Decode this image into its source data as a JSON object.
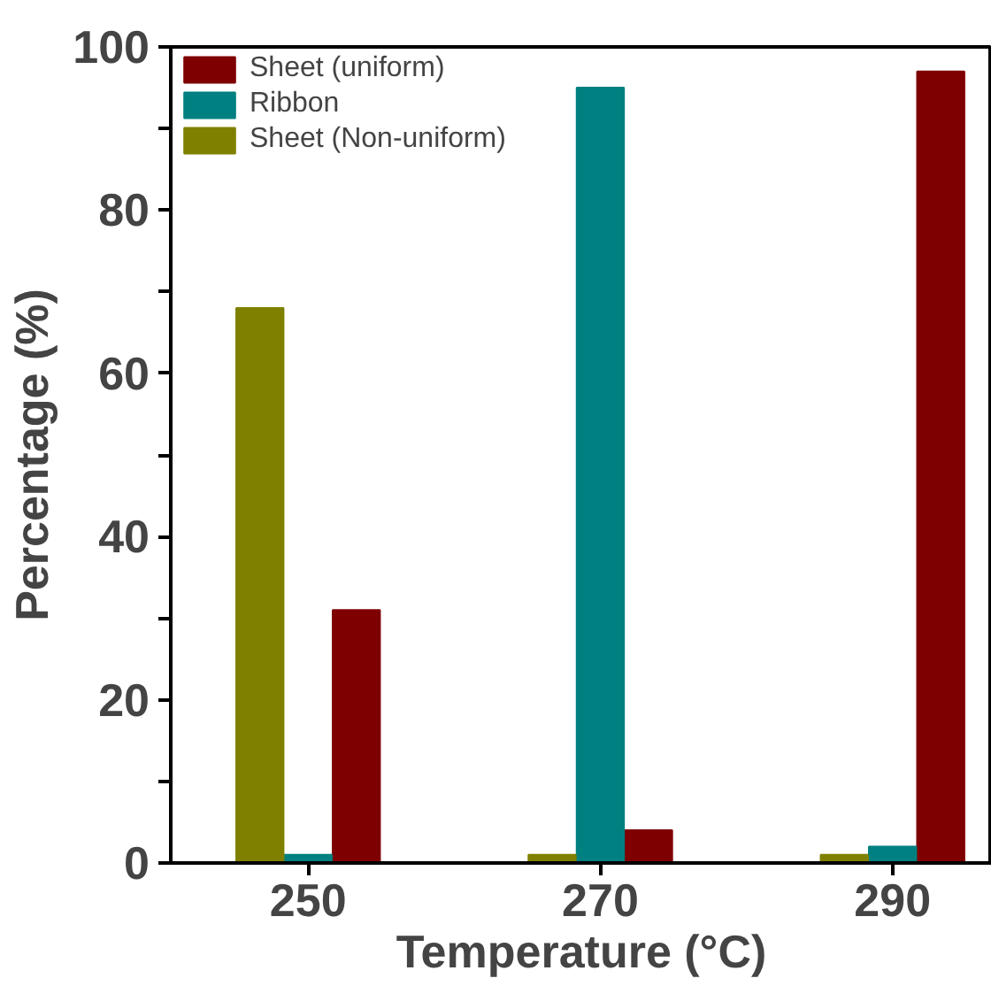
{
  "chart_data": {
    "type": "bar",
    "xlabel": "Temperature (°C)",
    "ylabel": "Percentage (%)",
    "categories": [
      "250",
      "270",
      "290"
    ],
    "series": [
      {
        "name": "Sheet (uniform)",
        "color": "#7f0000",
        "values": [
          31,
          4,
          97
        ]
      },
      {
        "name": "Ribbon",
        "color": "#008080",
        "values": [
          1,
          95,
          2
        ]
      },
      {
        "name": "Sheet (Non-uniform)",
        "color": "#808000",
        "values": [
          68,
          1,
          1
        ]
      }
    ],
    "ylim": [
      0,
      100
    ],
    "yticks": [
      0,
      {
        "value": 10,
        "label": null
      },
      20,
      {
        "value": 30,
        "label": null
      },
      40,
      {
        "value": 50,
        "label": null
      },
      60,
      {
        "value": 70,
        "label": null
      },
      80,
      {
        "value": 90,
        "label": null
      },
      100
    ],
    "grid": false,
    "legend": "top left"
  }
}
